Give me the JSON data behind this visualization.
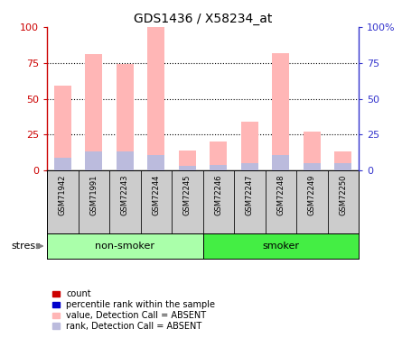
{
  "title": "GDS1436 / X58234_at",
  "samples": [
    "GSM71942",
    "GSM71991",
    "GSM72243",
    "GSM72244",
    "GSM72245",
    "GSM72246",
    "GSM72247",
    "GSM72248",
    "GSM72249",
    "GSM72250"
  ],
  "pink_bars": [
    59,
    81,
    74,
    100,
    14,
    20,
    34,
    82,
    27,
    13
  ],
  "blue_bars": [
    9,
    13,
    13,
    11,
    3,
    4,
    5,
    11,
    5,
    5
  ],
  "groups": [
    {
      "label": "non-smoker",
      "start": 0,
      "end": 5
    },
    {
      "label": "smoker",
      "start": 5,
      "end": 10
    }
  ],
  "group_label": "stress",
  "ylim": [
    0,
    100
  ],
  "yticks": [
    0,
    25,
    50,
    75,
    100
  ],
  "left_tick_labels": [
    "0",
    "25",
    "50",
    "75",
    "100"
  ],
  "right_tick_labels": [
    "0",
    "25",
    "50",
    "75",
    "100%"
  ],
  "left_axis_color": "#CC0000",
  "right_axis_color": "#3333CC",
  "legend_items": [
    {
      "color": "#CC0000",
      "label": "count"
    },
    {
      "color": "#0000CC",
      "label": "percentile rank within the sample"
    },
    {
      "color": "#FFB6B6",
      "label": "value, Detection Call = ABSENT"
    },
    {
      "color": "#BBBBDD",
      "label": "rank, Detection Call = ABSENT"
    }
  ],
  "bar_width": 0.55,
  "pink_color": "#FFB6B6",
  "blue_color": "#BBBBDD",
  "label_area_color": "#CCCCCC",
  "nonsmoker_color": "#AAFFAA",
  "smoker_color": "#44EE44",
  "grid_dotted_color": "black",
  "title_fontsize": 10
}
